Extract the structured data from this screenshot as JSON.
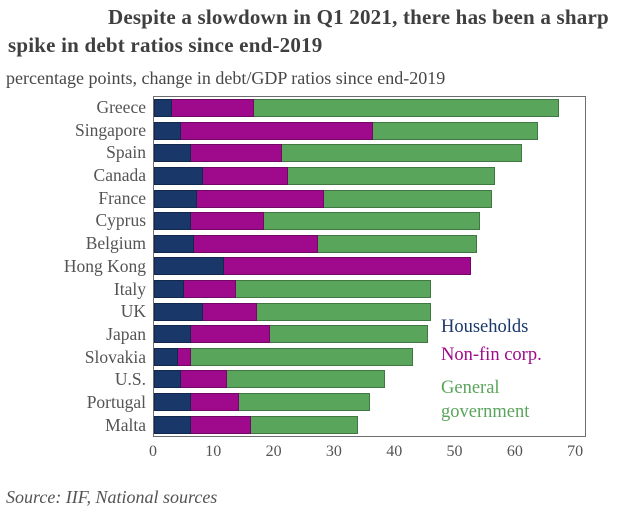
{
  "title": "Despite a slowdown in Q1 2021, there has been a sharp spike in debt ratios since end-2019",
  "subtitle": "percentage points, change in debt/GDP ratios since end-2019",
  "source": "Source: IIF, National sources",
  "colors": {
    "households": "#1a376a",
    "non_fin_corp": "#9f0a8c",
    "general_government": "#5aa55c",
    "title_text": "#3f3f3f",
    "axis_text": "#545454",
    "plot_border": "#6e6e6e"
  },
  "legend": {
    "items": [
      {
        "label": "Households",
        "color": "#1a376a"
      },
      {
        "label": "Non-fin corp.",
        "color": "#9f0a8c"
      },
      {
        "label": "General government",
        "color": "#5aa55c"
      }
    ]
  },
  "chart_data": {
    "type": "bar",
    "orientation": "horizontal",
    "stacked": true,
    "title": "Despite a slowdown in Q1 2021, there has been a sharp spike in debt ratios since end-2019",
    "xlabel": "percentage points, change in debt/GDP ratios since end-2019",
    "grid": false,
    "legend_position": "inside-right",
    "categories": [
      "Greece",
      "Singapore",
      "Spain",
      "Canada",
      "France",
      "Cyprus",
      "Belgium",
      "Hong Kong",
      "Italy",
      "UK",
      "Japan",
      "Slovakia",
      "U.S.",
      "Portugal",
      "Malta"
    ],
    "series": [
      {
        "name": "Households",
        "color": "#1a376a",
        "values": [
          3,
          4.5,
          6,
          8,
          7,
          6,
          6.5,
          11.5,
          5,
          8,
          6,
          4,
          4.5,
          6,
          6
        ]
      },
      {
        "name": "Non-fin corp.",
        "color": "#9f0a8c",
        "values": [
          13.5,
          31.5,
          15,
          14,
          21,
          12,
          20.5,
          40.5,
          8.5,
          9,
          13,
          2,
          7.5,
          8,
          10
        ]
      },
      {
        "name": "General government",
        "color": "#5aa55c",
        "values": [
          50,
          27,
          39.5,
          34,
          27.5,
          35.5,
          26,
          0,
          32,
          28.5,
          26,
          36.5,
          26,
          21.5,
          17.5
        ]
      }
    ],
    "totals": [
      66.5,
      63,
      60.5,
      56,
      55.5,
      53.5,
      53,
      52,
      45.5,
      45.5,
      45,
      42.5,
      38,
      35.5,
      33.5
    ],
    "axis": {
      "ticks": [
        0,
        10,
        20,
        30,
        40,
        50,
        60,
        70
      ],
      "min": 0,
      "max_units": 70.8
    }
  }
}
